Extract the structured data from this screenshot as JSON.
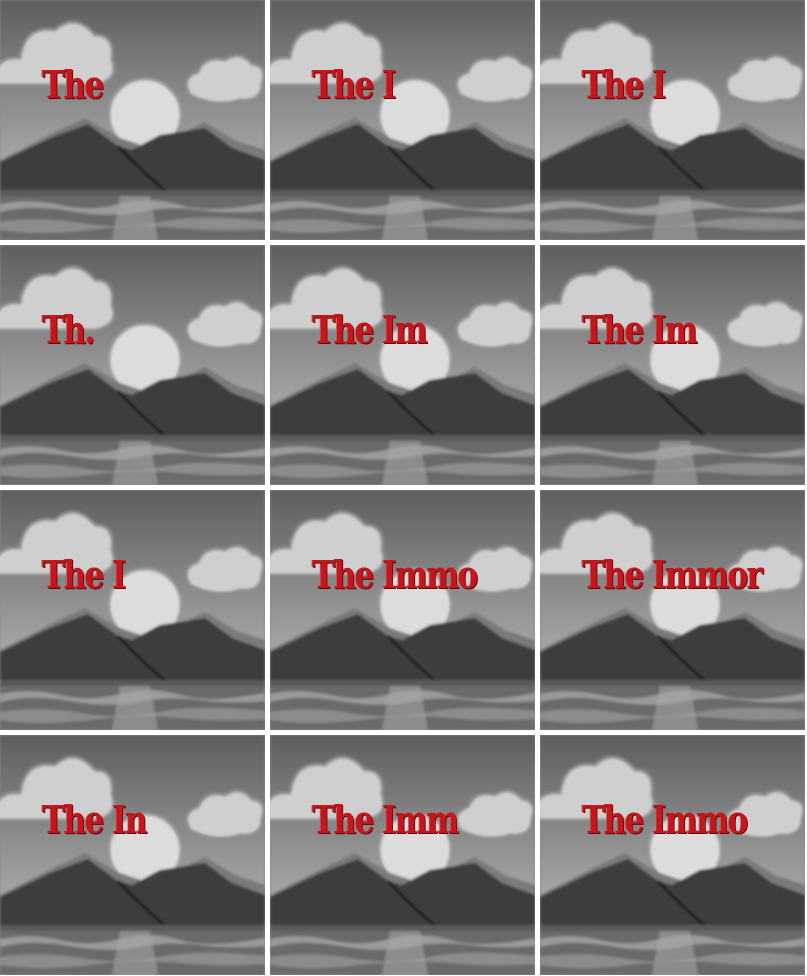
{
  "frames": [
    {
      "caption": "The "
    },
    {
      "caption": "The I"
    },
    {
      "caption": "The I"
    },
    {
      "caption": "Th."
    },
    {
      "caption": "The Im"
    },
    {
      "caption": "The Im"
    },
    {
      "caption": "The I"
    },
    {
      "caption": "The Immo"
    },
    {
      "caption": "The Immor"
    },
    {
      "caption": "The In"
    },
    {
      "caption": "The Imm"
    },
    {
      "caption": "The Immo"
    }
  ],
  "colors": {
    "caption": "#c4171d",
    "sky_top": "#5e5e5e",
    "sky_bottom": "#b8b8b8",
    "cloud": "#cfcfcf",
    "sun": "#dcdcdc",
    "mountain": "#3e3e3e",
    "water": "#6a6a6a"
  }
}
